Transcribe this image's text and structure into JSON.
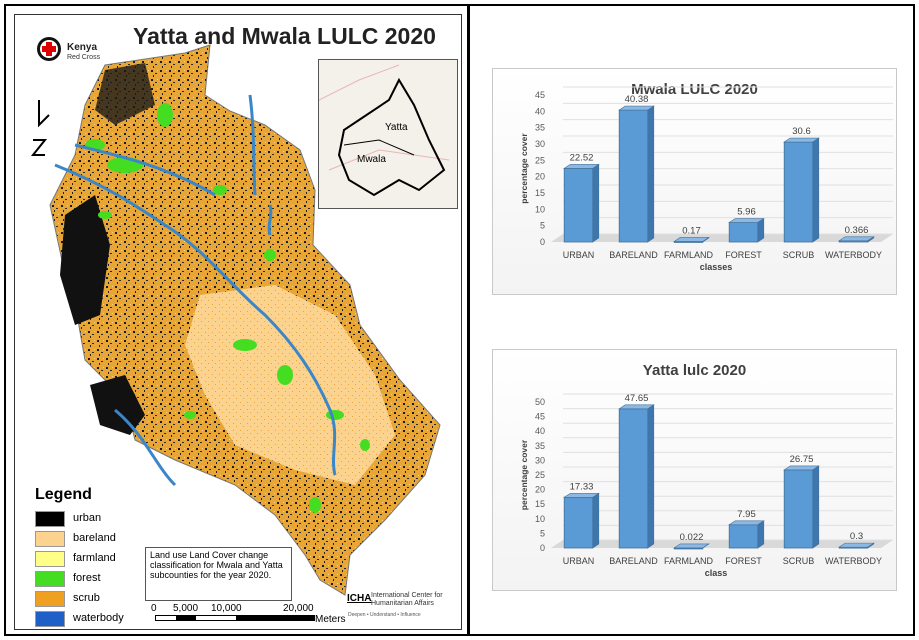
{
  "map": {
    "title": "Yatta and Mwala LULC 2020",
    "logo_name": "Kenya",
    "logo_sub": "Red Cross",
    "inset_labels": [
      "Yatta",
      "Mwala"
    ],
    "legend_title": "Legend",
    "legend": [
      {
        "label": "urban",
        "color": "#000000"
      },
      {
        "label": "bareland",
        "color": "#fbd28e"
      },
      {
        "label": "farmland",
        "color": "#ffff88"
      },
      {
        "label": "forest",
        "color": "#44dd22"
      },
      {
        "label": "scrub",
        "color": "#f0a020"
      },
      {
        "label": "waterbody",
        "color": "#1f5fc8"
      }
    ],
    "note": "Land use Land Cover change classification for Mwala and Yatta subcounties for the year 2020.",
    "scale_labels": [
      "0",
      "5,000",
      "10,000",
      "20,000"
    ],
    "scale_unit": "Meters",
    "icha_abbr": "ICHA",
    "icha_name": "International Center for Humanitarian Affairs",
    "icha_tagline": "Deepen • Understand • Influence"
  },
  "chart_data": [
    {
      "type": "bar",
      "title": "Mwala LULC 2020",
      "categories": [
        "URBAN",
        "BARELAND",
        "FARMLAND",
        "FOREST",
        "SCRUB",
        "WATERBODY"
      ],
      "values": [
        22.52,
        40.38,
        0.17,
        5.96,
        30.6,
        0.366
      ],
      "value_labels": [
        "22.52",
        "40.38",
        "0.17",
        "5.96",
        "30.6",
        "0.366"
      ],
      "xlabel": "classes",
      "ylabel": "percentage cover",
      "ylim": [
        0,
        45
      ],
      "yticks": [
        0,
        5,
        10,
        15,
        20,
        25,
        30,
        35,
        40,
        45
      ],
      "grid": true,
      "bar_color": "#5b9bd5"
    },
    {
      "type": "bar",
      "title": "Yatta lulc 2020",
      "categories": [
        "URBAN",
        "BARELAND",
        "FARMLAND",
        "FOREST",
        "SCRUB",
        "WATERBODY"
      ],
      "values": [
        17.33,
        47.65,
        0.022,
        7.95,
        26.75,
        0.3
      ],
      "value_labels": [
        "17.33",
        "47.65",
        "0.022",
        "7.95",
        "26.75",
        "0.3"
      ],
      "xlabel": "class",
      "ylabel": "percentage cover",
      "ylim": [
        0,
        50
      ],
      "yticks": [
        0,
        5,
        10,
        15,
        20,
        25,
        30,
        35,
        40,
        45,
        50
      ],
      "grid": true,
      "bar_color": "#5b9bd5"
    }
  ]
}
